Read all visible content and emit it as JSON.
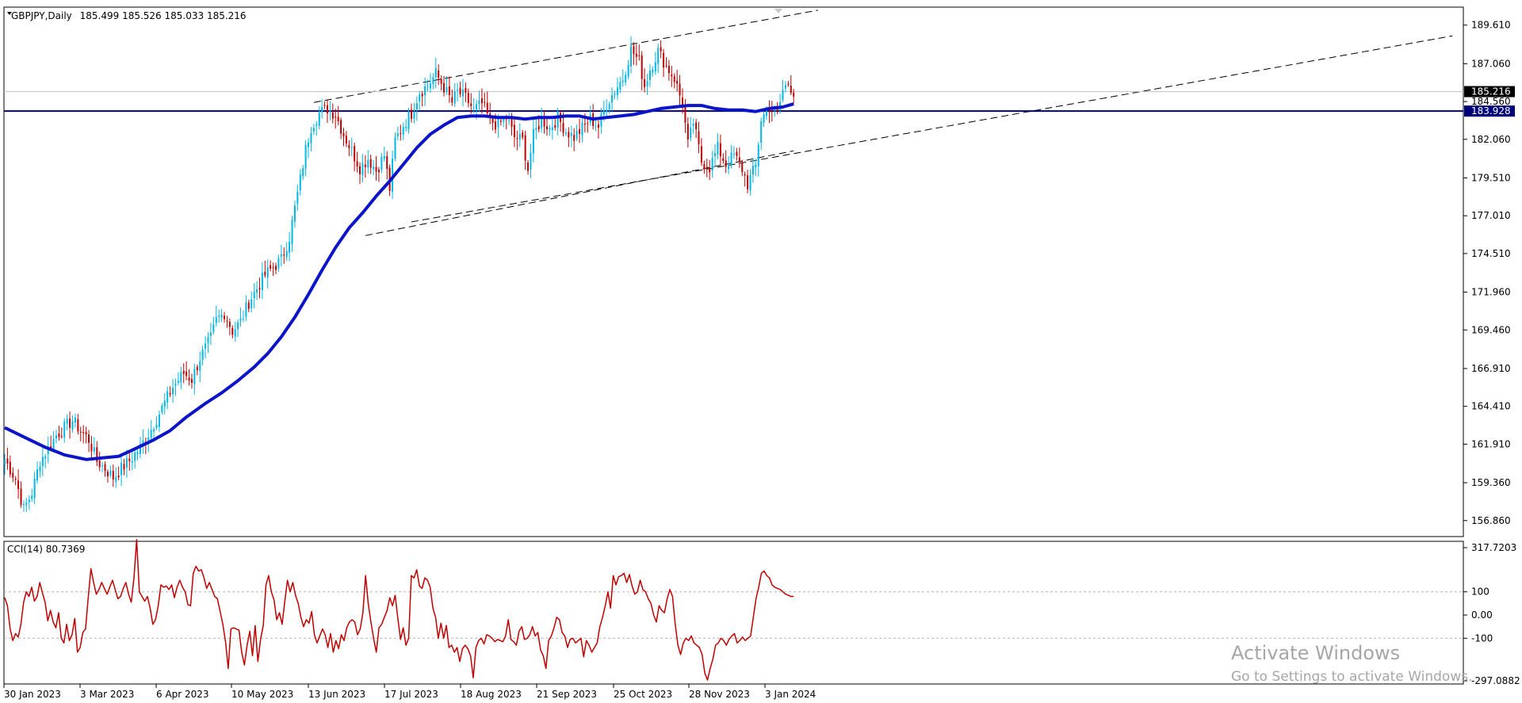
{
  "chart_data": [
    {
      "type": "candlestick",
      "title": "GBPJPY,Daily",
      "ohlc_label": "185.499 185.526 185.033 185.216",
      "ylim": [
        155.8,
        190.8
      ],
      "y_ticks": [
        "189.610",
        "187.060",
        "184.560",
        "182.060",
        "179.510",
        "177.010",
        "174.510",
        "171.960",
        "169.460",
        "166.910",
        "164.410",
        "161.910",
        "159.360",
        "156.860"
      ],
      "x_ticks": [
        "30 Jan 2023",
        "3 Mar 2023",
        "6 Apr 2023",
        "10 May 2023",
        "13 Jun 2023",
        "17 Jul 2023",
        "18 Aug 2023",
        "21 Sep 2023",
        "25 Oct 2023",
        "28 Nov 2023",
        "3 Jan 2024"
      ],
      "price_label": "185.216",
      "hline_label": "183.928",
      "hline_value": 183.928,
      "colors": {
        "up": "#00b7e6",
        "down": "#c00000",
        "ma": "#0b14c8",
        "hline": "#00007a",
        "cci": "#c00000"
      },
      "close_path": [
        [
          0,
          160.9
        ],
        [
          4,
          159.6
        ],
        [
          7,
          157.6
        ],
        [
          10,
          158.7
        ],
        [
          13,
          160.8
        ],
        [
          16,
          161.6
        ],
        [
          19,
          162.5
        ],
        [
          22,
          163.0
        ],
        [
          25,
          163.5
        ],
        [
          28,
          162.8
        ],
        [
          31,
          162.2
        ],
        [
          34,
          160.8
        ],
        [
          37,
          160.3
        ],
        [
          40,
          159.7
        ],
        [
          43,
          160.3
        ],
        [
          46,
          160.8
        ],
        [
          50,
          161.7
        ],
        [
          54,
          162.9
        ],
        [
          58,
          164.3
        ],
        [
          62,
          165.7
        ],
        [
          66,
          166.6
        ],
        [
          69,
          166.2
        ],
        [
          72,
          167.6
        ],
        [
          76,
          168.9
        ],
        [
          78,
          170.1
        ],
        [
          81,
          170.6
        ],
        [
          84,
          169.4
        ],
        [
          87,
          170.0
        ],
        [
          90,
          171.3
        ],
        [
          93,
          172.2
        ],
        [
          96,
          173.1
        ],
        [
          99,
          173.6
        ],
        [
          102,
          174.1
        ],
        [
          105,
          175.6
        ],
        [
          107,
          177.5
        ],
        [
          109,
          179.4
        ],
        [
          111,
          181.4
        ],
        [
          113,
          182.9
        ],
        [
          116,
          183.8
        ],
        [
          119,
          184.1
        ],
        [
          122,
          183.7
        ],
        [
          125,
          182.4
        ],
        [
          128,
          181.3
        ],
        [
          131,
          180.2
        ],
        [
          134,
          180.8
        ],
        [
          137,
          180.0
        ],
        [
          140,
          181.0
        ],
        [
          142,
          178.8
        ],
        [
          144,
          182.0
        ],
        [
          147,
          183.0
        ],
        [
          150,
          183.8
        ],
        [
          153,
          185.2
        ],
        [
          156,
          185.6
        ],
        [
          159,
          186.4
        ],
        [
          162,
          185.5
        ],
        [
          165,
          184.5
        ],
        [
          167,
          185.2
        ],
        [
          170,
          184.8
        ],
        [
          173,
          184.0
        ],
        [
          176,
          184.4
        ],
        [
          179,
          183.3
        ],
        [
          182,
          183.0
        ],
        [
          185,
          183.5
        ],
        [
          188,
          182.2
        ],
        [
          191,
          182.0
        ],
        [
          193,
          180.1
        ],
        [
          195,
          182.3
        ],
        [
          198,
          183.4
        ],
        [
          201,
          182.8
        ],
        [
          204,
          183.5
        ],
        [
          207,
          182.6
        ],
        [
          210,
          182.2
        ],
        [
          213,
          182.8
        ],
        [
          216,
          183.4
        ],
        [
          219,
          182.9
        ],
        [
          222,
          184.4
        ],
        [
          225,
          185.3
        ],
        [
          228,
          186.1
        ],
        [
          231,
          188.0
        ],
        [
          234,
          187.2
        ],
        [
          236,
          185.6
        ],
        [
          238,
          186.7
        ],
        [
          241,
          187.9
        ],
        [
          244,
          186.9
        ],
        [
          247,
          186.1
        ],
        [
          250,
          184.4
        ],
        [
          252,
          181.7
        ],
        [
          254,
          183.2
        ],
        [
          257,
          180.6
        ],
        [
          260,
          180.2
        ],
        [
          263,
          181.5
        ],
        [
          266,
          180.4
        ],
        [
          269,
          181.0
        ],
        [
          272,
          180.1
        ],
        [
          274,
          179.1
        ],
        [
          277,
          180.3
        ],
        [
          279,
          183.4
        ],
        [
          282,
          184.2
        ],
        [
          285,
          183.7
        ],
        [
          287,
          185.3
        ],
        [
          289,
          185.8
        ],
        [
          291,
          185.2
        ]
      ],
      "ma_path": [
        [
          0,
          163.0
        ],
        [
          8,
          162.3
        ],
        [
          15,
          161.7
        ],
        [
          22,
          161.2
        ],
        [
          30,
          160.9
        ],
        [
          36,
          161.0
        ],
        [
          42,
          161.1
        ],
        [
          48,
          161.6
        ],
        [
          55,
          162.2
        ],
        [
          61,
          162.8
        ],
        [
          67,
          163.7
        ],
        [
          74,
          164.6
        ],
        [
          80,
          165.3
        ],
        [
          86,
          166.1
        ],
        [
          92,
          167.0
        ],
        [
          97,
          167.9
        ],
        [
          102,
          169.0
        ],
        [
          107,
          170.3
        ],
        [
          112,
          171.8
        ],
        [
          117,
          173.4
        ],
        [
          122,
          174.9
        ],
        [
          127,
          176.2
        ],
        [
          132,
          177.2
        ],
        [
          137,
          178.3
        ],
        [
          142,
          179.3
        ],
        [
          147,
          180.4
        ],
        [
          152,
          181.5
        ],
        [
          157,
          182.4
        ],
        [
          162,
          183.0
        ],
        [
          167,
          183.5
        ],
        [
          172,
          183.6
        ],
        [
          177,
          183.6
        ],
        [
          182,
          183.5
        ],
        [
          187,
          183.5
        ],
        [
          192,
          183.4
        ],
        [
          197,
          183.5
        ],
        [
          202,
          183.5
        ],
        [
          207,
          183.6
        ],
        [
          212,
          183.6
        ],
        [
          217,
          183.4
        ],
        [
          222,
          183.5
        ],
        [
          227,
          183.6
        ],
        [
          232,
          183.7
        ],
        [
          237,
          183.9
        ],
        [
          242,
          184.1
        ],
        [
          247,
          184.2
        ],
        [
          252,
          184.3
        ],
        [
          257,
          184.3
        ],
        [
          262,
          184.1
        ],
        [
          267,
          184.0
        ],
        [
          272,
          184.0
        ],
        [
          277,
          183.9
        ],
        [
          282,
          184.1
        ],
        [
          287,
          184.2
        ],
        [
          291,
          184.4
        ]
      ],
      "trendlines": [
        {
          "from": [
            114,
            184.5
          ],
          "to": [
            300,
            190.6
          ]
        },
        {
          "from": [
            133,
            175.7
          ],
          "to": [
            291,
            181.3
          ]
        },
        {
          "from": [
            150,
            176.6
          ],
          "to": [
            534,
            188.9
          ]
        }
      ]
    },
    {
      "type": "line",
      "title": "CCI(14) 80.7369",
      "ylim": [
        -297.0882,
        317.7203
      ],
      "y_ticks": [
        "317.7203",
        "100",
        "0.00",
        "-100",
        "-297.0882"
      ],
      "levels": [
        100,
        -100
      ],
      "x_max": 291,
      "values": [
        75,
        40,
        -60,
        -110,
        -80,
        -95,
        -40,
        55,
        100,
        80,
        120,
        60,
        80,
        140,
        95,
        55,
        -25,
        20,
        -30,
        -55,
        10,
        -100,
        -120,
        -40,
        -110,
        -85,
        -15,
        -160,
        -140,
        -75,
        -60,
        75,
        200,
        140,
        90,
        110,
        140,
        115,
        90,
        120,
        150,
        110,
        70,
        80,
        115,
        140,
        90,
        55,
        160,
        325,
        100,
        80,
        60,
        80,
        30,
        -40,
        -20,
        40,
        130,
        120,
        125,
        110,
        130,
        75,
        120,
        150,
        120,
        100,
        45,
        40,
        180,
        210,
        190,
        195,
        160,
        115,
        140,
        110,
        80,
        70,
        15,
        -40,
        -115,
        -230,
        -60,
        -55,
        -60,
        -65,
        -160,
        -215,
        -130,
        -70,
        -175,
        -45,
        -200,
        -105,
        -45,
        130,
        170,
        100,
        65,
        -20,
        10,
        -40,
        60,
        150,
        100,
        140,
        85,
        50,
        -10,
        -50,
        -20,
        -35,
        15,
        -85,
        -120,
        -90,
        -60,
        -85,
        -140,
        -80,
        -160,
        -110,
        -145,
        -85,
        -110,
        -55,
        -30,
        -20,
        -30,
        -85,
        -60,
        10,
        170,
        50,
        -30,
        -100,
        -160,
        -55,
        -40,
        -10,
        20,
        75,
        40,
        85,
        -15,
        -105,
        -55,
        -130,
        -100,
        170,
        160,
        195,
        125,
        115,
        160,
        150,
        120,
        30,
        -10,
        -100,
        -35,
        -100,
        -45,
        -140,
        -130,
        -160,
        -140,
        -200,
        -145,
        -130,
        -145,
        -175,
        -270,
        -140,
        -110,
        -100,
        -125,
        -85,
        -90,
        -100,
        -115,
        -105,
        -110,
        -115,
        -90,
        -20,
        -105,
        -115,
        -130,
        -70,
        -50,
        -105,
        -100,
        -85,
        -50,
        -90,
        -75,
        -150,
        -175,
        -230,
        -110,
        -90,
        -55,
        -10,
        -20,
        -75,
        -90,
        -140,
        -105,
        -100,
        -120,
        -110,
        -100,
        -180,
        -110,
        -130,
        -160,
        -140,
        -120,
        -50,
        -10,
        40,
        100,
        30,
        170,
        130,
        165,
        170,
        180,
        140,
        175,
        125,
        90,
        100,
        150,
        110,
        100,
        70,
        50,
        0,
        -30,
        40,
        20,
        10,
        70,
        110,
        80,
        -40,
        -130,
        -170,
        -120,
        -100,
        -110,
        -90,
        -120,
        -130,
        -140,
        -170,
        -250,
        -280,
        -230,
        -190,
        -130,
        -120,
        -100,
        -110,
        -130,
        -105,
        -90,
        -80,
        -120,
        -110,
        -95,
        -110,
        -100,
        -90,
        -10,
        70,
        120,
        180,
        190,
        170,
        160,
        130,
        120,
        115,
        110,
        100,
        90,
        85,
        80,
        80.7
      ]
    }
  ],
  "watermark": {
    "title": "Activate Windows",
    "subtitle": "Go to Settings to activate Windows."
  }
}
